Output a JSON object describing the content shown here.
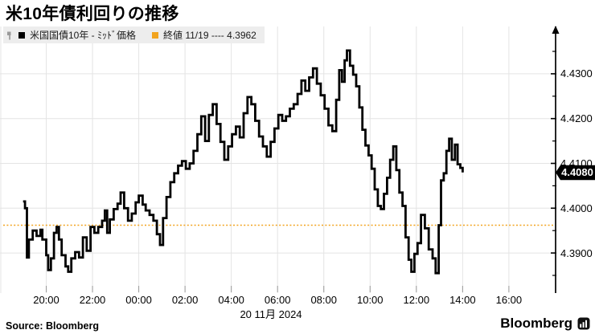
{
  "title": "米10年債利回りの推移",
  "legend": {
    "series_label": "米国国債10年 - ﾐｯﾄﾞ価格",
    "close_label": "終値 11/19 ---- 4.3962"
  },
  "source": "Source: Bloomberg",
  "logo_text": "Bloomberg",
  "colors": {
    "series": "#000000",
    "accent_orange": "#f2a41f",
    "grid": "#e4e4e4",
    "legend_bg": "#ededed",
    "tag_bg": "#000000",
    "tag_text": "#ffffff",
    "axis": "#000000",
    "x_tick": "#999999"
  },
  "chart_data": {
    "type": "line",
    "style": "step",
    "title": "米10年債利回りの推移",
    "series_name": "米国国債10年 - ﾐｯﾄﾞ価格",
    "legend_position": "top-left",
    "grid": true,
    "y_axis_side": "right",
    "ylim": [
      4.381,
      4.4405
    ],
    "y_ticks": [
      4.43,
      4.42,
      4.41,
      4.4,
      4.39
    ],
    "y_tick_labels": [
      "4.4300",
      "4.4200",
      "4.4100",
      "4.4000",
      "4.3900"
    ],
    "y_minor_tick_step": 0.005,
    "x_tick_labels": [
      "20:00",
      "22:00",
      "00:00",
      "02:00",
      "04:00",
      "06:00",
      "08:00",
      "10:00",
      "12:00",
      "14:00",
      "16:00"
    ],
    "x_date_label": "20 11月 2024",
    "close_line": {
      "value": 4.3962,
      "label": "終値 11/19 ---- 4.3962"
    },
    "last": {
      "time": "14:00",
      "value": 4.408,
      "label": "4.4080"
    },
    "points": [
      [
        "19:00",
        4.4015
      ],
      [
        "19:05",
        4.4
      ],
      [
        "19:10",
        4.389
      ],
      [
        "19:15",
        4.393
      ],
      [
        "19:25",
        4.395
      ],
      [
        "19:35",
        4.3938
      ],
      [
        "19:45",
        4.3952
      ],
      [
        "19:50",
        4.393
      ],
      [
        "20:00",
        4.3895
      ],
      [
        "20:05",
        4.3862
      ],
      [
        "20:12",
        4.3888
      ],
      [
        "20:20",
        4.3945
      ],
      [
        "20:27",
        4.3958
      ],
      [
        "20:33",
        4.393
      ],
      [
        "20:40",
        4.3895
      ],
      [
        "20:50",
        4.387
      ],
      [
        "20:57",
        4.3858
      ],
      [
        "21:05",
        4.3888
      ],
      [
        "21:15",
        4.3902
      ],
      [
        "21:25",
        4.389
      ],
      [
        "21:35",
        4.3935
      ],
      [
        "21:45",
        4.3905
      ],
      [
        "21:55",
        4.3958
      ],
      [
        "22:05",
        4.3945
      ],
      [
        "22:15",
        4.3958
      ],
      [
        "22:25",
        4.3972
      ],
      [
        "22:32",
        4.3995
      ],
      [
        "22:38",
        4.3945
      ],
      [
        "22:45",
        4.3975
      ],
      [
        "22:55",
        4.3998
      ],
      [
        "23:05",
        4.401
      ],
      [
        "23:13",
        4.4035
      ],
      [
        "23:22",
        4.4
      ],
      [
        "23:32",
        4.3972
      ],
      [
        "23:42",
        4.3988
      ],
      [
        "23:52",
        4.4013
      ],
      [
        "00:00",
        4.4028
      ],
      [
        "00:10",
        4.4008
      ],
      [
        "00:18",
        4.3995
      ],
      [
        "00:28",
        4.3985
      ],
      [
        "00:38",
        4.3972
      ],
      [
        "00:47",
        4.3942
      ],
      [
        "00:55",
        4.3918
      ],
      [
        "01:03",
        4.3978
      ],
      [
        "01:12",
        4.4025
      ],
      [
        "01:22",
        4.4058
      ],
      [
        "01:32",
        4.4078
      ],
      [
        "01:42",
        4.4095
      ],
      [
        "01:52",
        4.4105
      ],
      [
        "02:02",
        4.4088
      ],
      [
        "02:12",
        4.41
      ],
      [
        "02:22",
        4.4128
      ],
      [
        "02:32",
        4.4165
      ],
      [
        "02:42",
        4.4205
      ],
      [
        "02:52",
        4.415
      ],
      [
        "03:02",
        4.4208
      ],
      [
        "03:12",
        4.4232
      ],
      [
        "03:22",
        4.4188
      ],
      [
        "03:32",
        4.4148
      ],
      [
        "03:42",
        4.4108
      ],
      [
        "03:52",
        4.4138
      ],
      [
        "04:02",
        4.4165
      ],
      [
        "04:12",
        4.4182
      ],
      [
        "04:22",
        4.4158
      ],
      [
        "04:32",
        4.4212
      ],
      [
        "04:42",
        4.4248
      ],
      [
        "04:52",
        4.4232
      ],
      [
        "05:02",
        4.4195
      ],
      [
        "05:12",
        4.416
      ],
      [
        "05:22",
        4.4138
      ],
      [
        "05:32",
        4.4115
      ],
      [
        "05:42",
        4.4148
      ],
      [
        "05:52",
        4.4178
      ],
      [
        "06:02",
        4.4208
      ],
      [
        "06:12",
        4.4195
      ],
      [
        "06:22",
        4.4205
      ],
      [
        "06:32",
        4.4222
      ],
      [
        "06:42",
        4.4232
      ],
      [
        "06:52",
        4.4255
      ],
      [
        "07:02",
        4.4285
      ],
      [
        "07:12",
        4.4262
      ],
      [
        "07:22",
        4.4292
      ],
      [
        "07:32",
        4.4312
      ],
      [
        "07:42",
        4.4278
      ],
      [
        "07:52",
        4.4252
      ],
      [
        "08:02",
        4.4222
      ],
      [
        "08:12",
        4.4185
      ],
      [
        "08:22",
        4.4172
      ],
      [
        "08:32",
        4.4242
      ],
      [
        "08:40",
        4.4308
      ],
      [
        "08:47",
        4.4282
      ],
      [
        "08:54",
        4.433
      ],
      [
        "09:00",
        4.4352
      ],
      [
        "09:08",
        4.4318
      ],
      [
        "09:16",
        4.4298
      ],
      [
        "09:24",
        4.4272
      ],
      [
        "09:32",
        4.4225
      ],
      [
        "09:40",
        4.4175
      ],
      [
        "09:48",
        4.414
      ],
      [
        "09:56",
        4.4118
      ],
      [
        "10:04",
        4.4088
      ],
      [
        "10:12",
        4.4042
      ],
      [
        "10:20",
        4.4005
      ],
      [
        "10:28",
        4.3998
      ],
      [
        "10:36",
        4.4032
      ],
      [
        "10:44",
        4.4068
      ],
      [
        "10:52",
        4.4108
      ],
      [
        "11:00",
        4.4138
      ],
      [
        "11:08",
        4.4085
      ],
      [
        "11:16",
        4.4035
      ],
      [
        "11:24",
        4.4005
      ],
      [
        "11:32",
        4.3935
      ],
      [
        "11:40",
        4.3885
      ],
      [
        "11:47",
        4.3858
      ],
      [
        "11:55",
        4.3898
      ],
      [
        "12:03",
        4.3922
      ],
      [
        "12:12",
        4.3985
      ],
      [
        "12:22",
        4.3955
      ],
      [
        "12:32",
        4.3908
      ],
      [
        "12:42",
        4.3888
      ],
      [
        "12:50",
        4.3855
      ],
      [
        "12:58",
        4.3962
      ],
      [
        "13:04",
        4.4062
      ],
      [
        "13:11",
        4.4078
      ],
      [
        "13:18",
        4.4128
      ],
      [
        "13:25",
        4.4155
      ],
      [
        "13:32",
        4.4108
      ],
      [
        "13:40",
        4.4142
      ],
      [
        "13:47",
        4.4098
      ],
      [
        "13:54",
        4.409
      ],
      [
        "14:00",
        4.408
      ]
    ]
  }
}
